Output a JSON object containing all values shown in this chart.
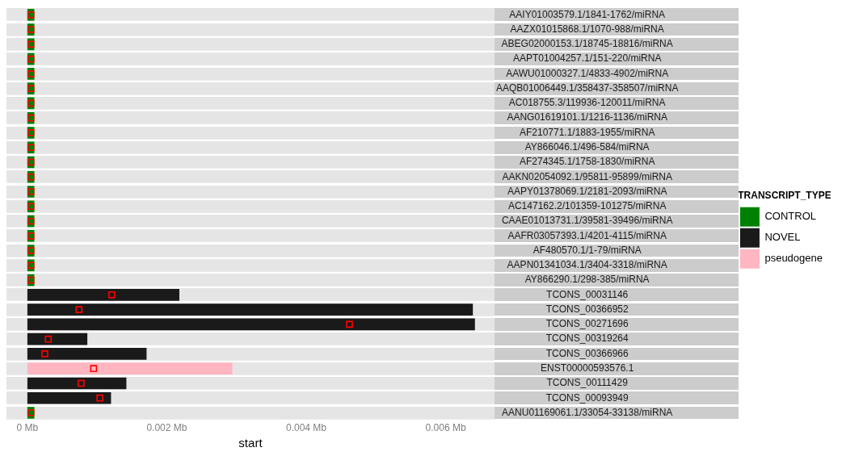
{
  "chart_data": {
    "type": "bar",
    "orientation": "horizontal",
    "xlabel": "start",
    "legend_title": "TRANSCRIPT_TYPE",
    "legend": "right",
    "grid": "y",
    "categories": [
      "AAIY01003579.1/1841-1762/miRNA",
      "AAZX01015868.1/1070-988/miRNA",
      "ABEG02000153.1/18745-18816/miRNA",
      "AAPT01004257.1/151-220/miRNA",
      "AAWU01000327.1/4833-4902/miRNA",
      "AAQB01006449.1/358437-358507/miRNA",
      "AC018755.3/119936-120011/miRNA",
      "AANG01619101.1/1216-1136/miRNA",
      "AF210771.1/1883-1955/miRNA",
      "AY866046.1/496-584/miRNA",
      "AF274345.1/1758-1830/miRNA",
      "AAKN02054092.1/95811-95899/miRNA",
      "AAPY01378069.1/2181-2093/miRNA",
      "AC147162.2/101359-101275/miRNA",
      "CAAE01013731.1/39581-39496/miRNA",
      "AAFR03057393.1/4201-4115/miRNA",
      "AF480570.1/1-79/miRNA",
      "AAPN01341034.1/3404-3318/miRNA",
      "AY866290.1/298-385/miRNA",
      "TCONS_00031146",
      "TCONS_00366952",
      "TCONS_00271696",
      "TCONS_00319264",
      "TCONS_00366966",
      "ENST00000593576.1",
      "TCONS_00111429",
      "TCONS_00093949",
      "AANU01169061.1/33054-33138/miRNA"
    ],
    "xlim": [
      -0.0003,
      0.0067
    ],
    "xticks": [
      {
        "value": 0,
        "label": "0 Mb"
      },
      {
        "value": 0.002,
        "label": "0.002 Mb"
      },
      {
        "value": 0.004,
        "label": "0.004 Mb"
      },
      {
        "value": 0.006,
        "label": "0.006 Mb"
      }
    ],
    "series": [
      {
        "name": "CONTROL",
        "color": "#008000",
        "values": [
          0.0001,
          0.0001,
          0.0001,
          0.0001,
          0.0001,
          0.0001,
          0.0001,
          0.0001,
          0.0001,
          0.0001,
          0.0001,
          0.0001,
          0.0001,
          0.0001,
          0.0001,
          0.0001,
          0.0001,
          0.0001,
          0.0001,
          null,
          null,
          null,
          null,
          null,
          null,
          null,
          null,
          0.0001
        ]
      },
      {
        "name": "NOVEL",
        "color": "#1a1a1a",
        "values": [
          null,
          null,
          null,
          null,
          null,
          null,
          null,
          null,
          null,
          null,
          null,
          null,
          null,
          null,
          null,
          null,
          null,
          null,
          null,
          0.00218,
          0.00639,
          0.00642,
          0.00086,
          0.00171,
          null,
          0.00142,
          0.0012,
          null
        ]
      },
      {
        "name": "pseudogene",
        "color": "#ffb6c1",
        "values": [
          null,
          null,
          null,
          null,
          null,
          null,
          null,
          null,
          null,
          null,
          null,
          null,
          null,
          null,
          null,
          null,
          null,
          null,
          null,
          null,
          null,
          null,
          null,
          null,
          0.00294,
          null,
          null,
          null
        ]
      },
      {
        "type": "scatter",
        "marker": "square",
        "color": "#ff0000",
        "values": [
          5e-05,
          5e-05,
          5e-05,
          5e-05,
          5e-05,
          5e-05,
          5e-05,
          5e-05,
          5e-05,
          5e-05,
          5e-05,
          5e-05,
          5e-05,
          5e-05,
          5e-05,
          5e-05,
          5e-05,
          5e-05,
          5e-05,
          0.00121,
          0.00074,
          0.00462,
          0.0003,
          0.00025,
          0.00095,
          0.00077,
          0.00104,
          5e-05
        ]
      }
    ]
  }
}
